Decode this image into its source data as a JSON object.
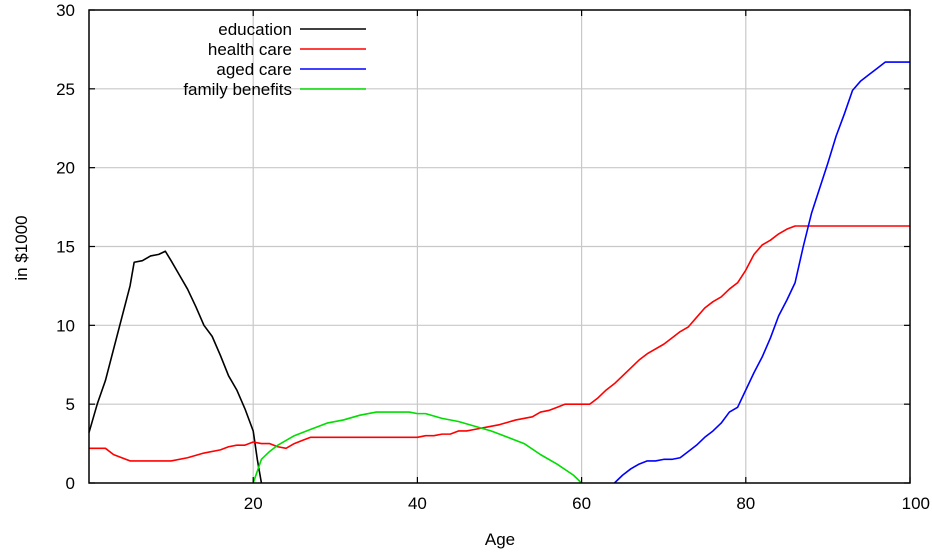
{
  "chart_data": {
    "type": "line",
    "title": "",
    "xlabel": "Age",
    "ylabel": "in $1000",
    "xlim": [
      0,
      100
    ],
    "ylim": [
      0,
      30
    ],
    "xticks": [
      20,
      40,
      60,
      80,
      100
    ],
    "yticks": [
      0,
      5,
      10,
      15,
      20,
      25,
      30
    ],
    "grid": true,
    "legend_position": "top-left",
    "series": [
      {
        "name": "education",
        "color": "#000000",
        "points": [
          [
            0,
            3.2
          ],
          [
            1,
            5.0
          ],
          [
            2,
            6.5
          ],
          [
            3,
            8.5
          ],
          [
            4,
            10.5
          ],
          [
            5,
            12.5
          ],
          [
            5.5,
            14.0
          ],
          [
            6.5,
            14.1
          ],
          [
            7.5,
            14.4
          ],
          [
            8.5,
            14.5
          ],
          [
            9.3,
            14.7
          ],
          [
            10,
            14.1
          ],
          [
            11,
            13.2
          ],
          [
            12,
            12.3
          ],
          [
            13,
            11.2
          ],
          [
            14,
            10.0
          ],
          [
            15,
            9.3
          ],
          [
            16,
            8.1
          ],
          [
            17,
            6.8
          ],
          [
            18,
            5.9
          ],
          [
            19,
            4.7
          ],
          [
            20,
            3.3
          ],
          [
            20.5,
            1.5
          ],
          [
            21,
            0.0
          ]
        ]
      },
      {
        "name": "health care",
        "color": "#ff0000",
        "points": [
          [
            0,
            2.2
          ],
          [
            2,
            2.2
          ],
          [
            3,
            1.8
          ],
          [
            5,
            1.4
          ],
          [
            6,
            1.4
          ],
          [
            8,
            1.4
          ],
          [
            10,
            1.4
          ],
          [
            12,
            1.6
          ],
          [
            14,
            1.9
          ],
          [
            16,
            2.1
          ],
          [
            17,
            2.3
          ],
          [
            18,
            2.4
          ],
          [
            19,
            2.4
          ],
          [
            20,
            2.6
          ],
          [
            21,
            2.5
          ],
          [
            22,
            2.5
          ],
          [
            23,
            2.3
          ],
          [
            24,
            2.2
          ],
          [
            25,
            2.5
          ],
          [
            26,
            2.7
          ],
          [
            27,
            2.9
          ],
          [
            30,
            2.9
          ],
          [
            35,
            2.9
          ],
          [
            40,
            2.9
          ],
          [
            41,
            3.0
          ],
          [
            42,
            3.0
          ],
          [
            43,
            3.1
          ],
          [
            44,
            3.1
          ],
          [
            45,
            3.3
          ],
          [
            46,
            3.3
          ],
          [
            47,
            3.4
          ],
          [
            48,
            3.5
          ],
          [
            50,
            3.7
          ],
          [
            52,
            4.0
          ],
          [
            54,
            4.2
          ],
          [
            55,
            4.5
          ],
          [
            56,
            4.6
          ],
          [
            57,
            4.8
          ],
          [
            58,
            5.0
          ],
          [
            60,
            5.0
          ],
          [
            61,
            5.0
          ],
          [
            62,
            5.4
          ],
          [
            63,
            5.9
          ],
          [
            64,
            6.3
          ],
          [
            65,
            6.8
          ],
          [
            66,
            7.3
          ],
          [
            67,
            7.8
          ],
          [
            68,
            8.2
          ],
          [
            70,
            8.8
          ],
          [
            71,
            9.2
          ],
          [
            72,
            9.6
          ],
          [
            73,
            9.9
          ],
          [
            74,
            10.5
          ],
          [
            75,
            11.1
          ],
          [
            76,
            11.5
          ],
          [
            77,
            11.8
          ],
          [
            78,
            12.3
          ],
          [
            79,
            12.7
          ],
          [
            80,
            13.5
          ],
          [
            81,
            14.5
          ],
          [
            82,
            15.1
          ],
          [
            83,
            15.4
          ],
          [
            84,
            15.8
          ],
          [
            85,
            16.1
          ],
          [
            86,
            16.3
          ],
          [
            88,
            16.3
          ],
          [
            90,
            16.3
          ],
          [
            95,
            16.3
          ],
          [
            100,
            16.3
          ]
        ]
      },
      {
        "name": "aged care",
        "color": "#0000ff",
        "points": [
          [
            64,
            0.0
          ],
          [
            65,
            0.5
          ],
          [
            66,
            0.9
          ],
          [
            67,
            1.2
          ],
          [
            68,
            1.4
          ],
          [
            69,
            1.4
          ],
          [
            70,
            1.5
          ],
          [
            71,
            1.5
          ],
          [
            72,
            1.6
          ],
          [
            73,
            2.0
          ],
          [
            74,
            2.4
          ],
          [
            75,
            2.9
          ],
          [
            76,
            3.3
          ],
          [
            77,
            3.8
          ],
          [
            78,
            4.5
          ],
          [
            79,
            4.8
          ],
          [
            80,
            5.9
          ],
          [
            81,
            7.0
          ],
          [
            82,
            8.0
          ],
          [
            83,
            9.2
          ],
          [
            84,
            10.6
          ],
          [
            85,
            11.6
          ],
          [
            86,
            12.7
          ],
          [
            87,
            15.0
          ],
          [
            88,
            17.1
          ],
          [
            89,
            18.7
          ],
          [
            90,
            20.3
          ],
          [
            91,
            22.0
          ],
          [
            92,
            23.4
          ],
          [
            93,
            24.9
          ],
          [
            94,
            25.5
          ],
          [
            95,
            25.9
          ],
          [
            96,
            26.3
          ],
          [
            97,
            26.7
          ],
          [
            98,
            26.7
          ],
          [
            100,
            26.7
          ]
        ]
      },
      {
        "name": "family benefits",
        "color": "#00dd00",
        "points": [
          [
            20,
            0.0
          ],
          [
            21,
            1.5
          ],
          [
            22,
            2.0
          ],
          [
            23,
            2.4
          ],
          [
            24,
            2.7
          ],
          [
            25,
            3.0
          ],
          [
            27,
            3.4
          ],
          [
            29,
            3.8
          ],
          [
            31,
            4.0
          ],
          [
            33,
            4.3
          ],
          [
            35,
            4.5
          ],
          [
            37,
            4.5
          ],
          [
            39,
            4.5
          ],
          [
            40,
            4.4
          ],
          [
            41,
            4.4
          ],
          [
            43,
            4.1
          ],
          [
            45,
            3.9
          ],
          [
            47,
            3.6
          ],
          [
            49,
            3.3
          ],
          [
            51,
            2.9
          ],
          [
            53,
            2.5
          ],
          [
            55,
            1.8
          ],
          [
            57,
            1.2
          ],
          [
            59,
            0.5
          ],
          [
            60,
            0.0
          ]
        ]
      }
    ]
  }
}
